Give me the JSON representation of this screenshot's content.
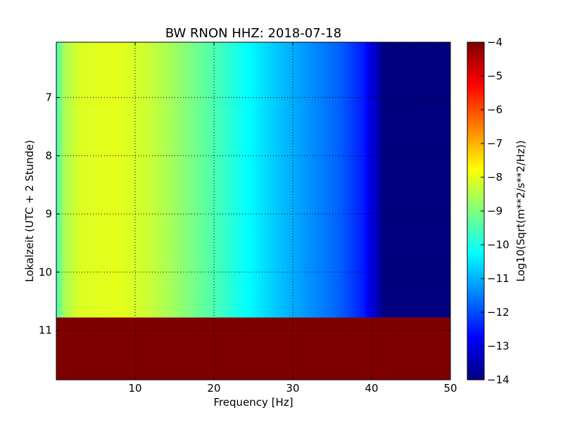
{
  "chart_data": {
    "type": "heatmap",
    "title": "BW RNON HHZ: 2018-07-18",
    "xlabel": "Frequency [Hz]",
    "ylabel": "Lokalzeit (UTC + 2 Stunde)",
    "xlim": [
      0,
      50
    ],
    "ylim": [
      11.85,
      6.05
    ],
    "xticks": [
      10,
      20,
      30,
      40,
      50
    ],
    "yticks": [
      7,
      8,
      9,
      10,
      11
    ],
    "grid": true,
    "data_end_time": 10.78,
    "colorbar": {
      "label": "Log10(Sqrt(m**2/s**2/Hz))",
      "range": [
        -14,
        -4
      ],
      "ticks": [
        -4,
        -5,
        -6,
        -7,
        -8,
        -9,
        -10,
        -11,
        -12,
        -13,
        -14
      ],
      "colormap": "jet"
    },
    "spectrum_profile": {
      "frequency_hz": [
        0,
        1,
        3,
        8,
        12,
        15,
        20,
        24,
        28,
        32,
        36,
        39,
        40.5,
        41.5,
        50
      ],
      "log10_amplitude": [
        -9.6,
        -8.6,
        -8.1,
        -8.0,
        -8.3,
        -8.7,
        -9.5,
        -10.2,
        -10.8,
        -11.3,
        -11.8,
        -12.5,
        -13.3,
        -14,
        -14
      ]
    },
    "no_data_value": -4,
    "colors": {
      "no_data": "#800000",
      "jet": [
        "#00007f",
        "#0000ff",
        "#007fff",
        "#00ffff",
        "#7fff7f",
        "#ffff00",
        "#ff7f00",
        "#ff0000",
        "#7f0000"
      ]
    }
  }
}
